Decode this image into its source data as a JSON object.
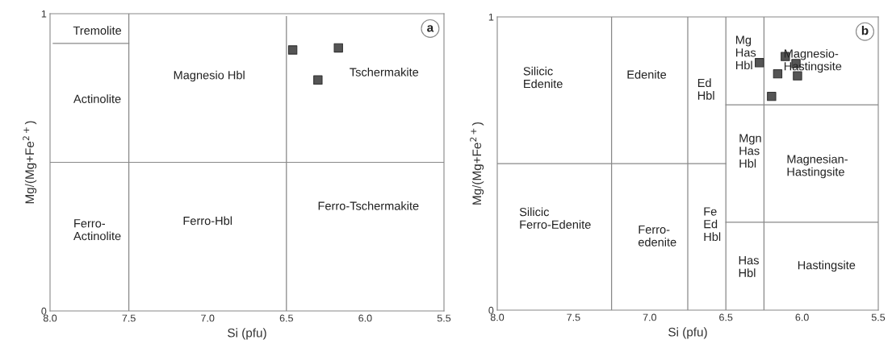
{
  "chart_data": [
    {
      "type": "scatter",
      "xlabel": "Si (pfu)",
      "ylabel": "Mg/(Mg+Fe$^{2+}$)",
      "xlim": [
        8.0,
        5.5
      ],
      "ylim": [
        0,
        1
      ],
      "xticks": [
        {
          "value": 8.0,
          "label": "8.0"
        },
        {
          "value": 7.5,
          "label": "7.5"
        },
        {
          "value": 7.0,
          "label": "7.0"
        },
        {
          "value": 6.5,
          "label": "6.5"
        },
        {
          "value": 6.0,
          "label": "6.0"
        },
        {
          "value": 5.5,
          "label": "5.5"
        }
      ],
      "yticks": [
        0,
        1
      ],
      "grid": false,
      "legend": false,
      "series": [
        {
          "marker": "square",
          "color": "#555555",
          "x": [
            6.46,
            6.17,
            6.3
          ],
          "values": [
            0.878,
            0.885,
            0.777
          ]
        },
        {
          "type": "line",
          "marker": "none",
          "color": "#888888",
          "x": [
            7.5,
            7.5
          ],
          "values": [
            0,
            1
          ]
        },
        {
          "type": "line",
          "marker": "none",
          "color": "#888888",
          "x": [
            6.5,
            6.5
          ],
          "values": [
            0,
            0.99
          ]
        },
        {
          "type": "line",
          "marker": "none",
          "color": "#888888",
          "x": [
            8.0,
            5.5
          ],
          "values": [
            0.5,
            0.5
          ]
        },
        {
          "type": "line",
          "marker": "none",
          "color": "#888888",
          "x": [
            7.98,
            7.5
          ],
          "values": [
            0.9,
            0.9
          ]
        }
      ],
      "annotations": [
        "a",
        "Tremolite",
        "Actinolite",
        "Magnesio Hbl",
        "Tschermakite",
        "Ferro-\nActinolite",
        "Ferro-Hbl",
        "Ferro-Tschermakite"
      ]
    },
    {
      "type": "scatter",
      "xlabel": "Si (pfu)",
      "ylabel": "Mg/(Mg+Fe$^{2+}$)",
      "xlim": [
        8.0,
        5.5
      ],
      "ylim": [
        0,
        1
      ],
      "xticks": [
        {
          "value": 8.0,
          "label": "8.0"
        },
        {
          "value": 7.5,
          "label": "7.5"
        },
        {
          "value": 7.0,
          "label": "7.0"
        },
        {
          "value": 6.5,
          "label": "6.5"
        },
        {
          "value": 6.0,
          "label": "6.0"
        },
        {
          "value": 5.5,
          "label": "5.5"
        }
      ],
      "yticks": [
        0,
        1
      ],
      "grid": false,
      "legend": false,
      "series": [
        {
          "marker": "square",
          "color": "#555555",
          "x": [
            6.28,
            6.11,
            6.04,
            6.16,
            6.03,
            6.2
          ],
          "values": [
            0.844,
            0.865,
            0.841,
            0.806,
            0.799,
            0.729
          ]
        },
        {
          "type": "line",
          "marker": "none",
          "color": "#888888",
          "x": [
            7.25,
            7.25
          ],
          "values": [
            0,
            1
          ]
        },
        {
          "type": "line",
          "marker": "none",
          "color": "#888888",
          "x": [
            6.75,
            6.75
          ],
          "values": [
            0,
            1
          ]
        },
        {
          "type": "line",
          "marker": "none",
          "color": "#888888",
          "x": [
            6.5,
            6.5
          ],
          "values": [
            0,
            1
          ]
        },
        {
          "type": "line",
          "marker": "none",
          "color": "#888888",
          "x": [
            6.25,
            6.25
          ],
          "values": [
            0,
            1
          ]
        },
        {
          "type": "line",
          "marker": "none",
          "color": "#888888",
          "x": [
            8.0,
            6.5
          ],
          "values": [
            0.5,
            0.5
          ]
        },
        {
          "type": "line",
          "marker": "none",
          "color": "#888888",
          "x": [
            6.5,
            5.5
          ],
          "values": [
            0.7,
            0.7
          ]
        },
        {
          "type": "line",
          "marker": "none",
          "color": "#888888",
          "x": [
            6.5,
            5.5
          ],
          "values": [
            0.3,
            0.3
          ]
        }
      ],
      "annotations": [
        "b",
        "Silicic\nEdenite",
        "Edenite",
        "Ed\nHbl",
        "Mg\nHas\nHbl",
        "Magnesio-\nHastingsite",
        "Mgn\nHas\nHbl",
        "Magnesian-\nHastingsite",
        "Silicic\nFerro-Edenite",
        "Ferro-\nedenite",
        "Fe\nEd\nHbl",
        "Has\nHbl",
        "Hastingsite"
      ]
    }
  ]
}
